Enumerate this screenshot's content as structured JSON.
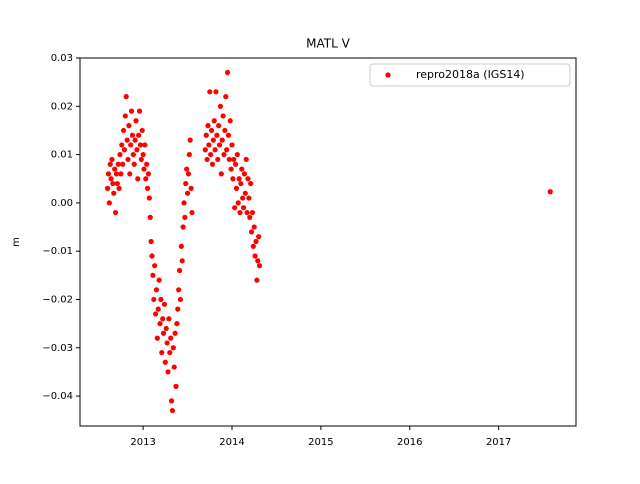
{
  "chart_data": {
    "type": "scatter",
    "title": "MATL V",
    "y_label": "m",
    "xlim": [
      2012.29,
      2017.87
    ],
    "ylim": [
      -0.0462,
      0.03
    ],
    "xticks": [
      2013,
      2014,
      2015,
      2016,
      2017
    ],
    "yticks": [
      0.03,
      0.02,
      0.01,
      {
        "value": 0,
        "label": "0.00"
      },
      {
        "value": -0.01,
        "label": "−0.01"
      },
      {
        "value": -0.02,
        "label": "−0.02"
      },
      {
        "value": -0.03,
        "label": "−0.03"
      },
      {
        "value": -0.04,
        "label": "−0.04"
      }
    ],
    "legend": "upper right",
    "series": [
      {
        "name": "repro2018a (IGS14)",
        "color": "#ff0000",
        "x": [
          2012.6,
          2012.61,
          2012.62,
          2012.63,
          2012.64,
          2012.65,
          2012.66,
          2012.67,
          2012.68,
          2012.69,
          2012.7,
          2012.71,
          2012.72,
          2012.73,
          2012.74,
          2012.75,
          2012.76,
          2012.77,
          2012.78,
          2012.79,
          2012.8,
          2012.81,
          2012.82,
          2012.83,
          2012.84,
          2012.85,
          2012.86,
          2012.87,
          2012.88,
          2012.89,
          2012.9,
          2012.91,
          2012.92,
          2012.93,
          2012.94,
          2012.95,
          2012.96,
          2012.97,
          2012.98,
          2012.99,
          2013.0,
          2013.01,
          2013.02,
          2013.03,
          2013.04,
          2013.05,
          2013.06,
          2013.07,
          2013.08,
          2013.09,
          2013.1,
          2013.11,
          2013.12,
          2013.13,
          2013.14,
          2013.15,
          2013.16,
          2013.17,
          2013.18,
          2013.19,
          2013.2,
          2013.21,
          2013.22,
          2013.23,
          2013.24,
          2013.25,
          2013.26,
          2013.27,
          2013.28,
          2013.29,
          2013.3,
          2013.31,
          2013.32,
          2013.33,
          2013.34,
          2013.35,
          2013.36,
          2013.37,
          2013.38,
          2013.39,
          2013.4,
          2013.41,
          2013.42,
          2013.43,
          2013.44,
          2013.45,
          2013.46,
          2013.47,
          2013.48,
          2013.49,
          2013.5,
          2013.51,
          2013.52,
          2013.53,
          2013.54,
          2013.55,
          2013.7,
          2013.71,
          2013.72,
          2013.73,
          2013.74,
          2013.75,
          2013.76,
          2013.77,
          2013.78,
          2013.79,
          2013.8,
          2013.81,
          2013.82,
          2013.83,
          2013.84,
          2013.85,
          2013.86,
          2013.87,
          2013.88,
          2013.89,
          2013.9,
          2013.91,
          2013.92,
          2013.93,
          2013.94,
          2013.95,
          2013.96,
          2013.97,
          2013.98,
          2013.99,
          2014.0,
          2014.01,
          2014.02,
          2014.03,
          2014.04,
          2014.05,
          2014.06,
          2014.07,
          2014.08,
          2014.09,
          2014.1,
          2014.11,
          2014.12,
          2014.13,
          2014.14,
          2014.15,
          2014.16,
          2014.17,
          2014.18,
          2014.19,
          2014.2,
          2014.21,
          2014.22,
          2014.23,
          2014.24,
          2014.25,
          2014.26,
          2014.27,
          2014.28,
          2014.29,
          2014.3,
          2014.31,
          2017.58
        ],
        "values": [
          0.003,
          0.006,
          0.0,
          0.008,
          0.005,
          0.009,
          0.004,
          0.002,
          0.007,
          -0.002,
          0.006,
          0.004,
          0.008,
          0.003,
          0.01,
          0.006,
          0.012,
          0.008,
          0.015,
          0.011,
          0.018,
          0.022,
          0.013,
          0.009,
          0.016,
          0.006,
          0.012,
          0.019,
          0.014,
          0.01,
          0.008,
          0.013,
          0.017,
          0.011,
          0.005,
          0.014,
          0.019,
          0.012,
          0.009,
          0.015,
          0.01,
          0.007,
          0.012,
          0.005,
          0.008,
          0.003,
          0.006,
          0.001,
          -0.003,
          -0.008,
          -0.011,
          -0.015,
          -0.02,
          -0.013,
          -0.023,
          -0.018,
          -0.028,
          -0.022,
          -0.016,
          -0.025,
          -0.02,
          -0.031,
          -0.024,
          -0.027,
          -0.021,
          -0.033,
          -0.026,
          -0.029,
          -0.035,
          -0.024,
          -0.031,
          -0.028,
          -0.041,
          -0.043,
          -0.03,
          -0.034,
          -0.027,
          -0.038,
          -0.025,
          -0.022,
          -0.018,
          -0.014,
          -0.02,
          -0.009,
          -0.012,
          -0.005,
          0.0,
          -0.003,
          0.004,
          0.007,
          0.002,
          0.006,
          0.01,
          0.013,
          0.003,
          -0.002,
          0.011,
          0.014,
          0.009,
          0.016,
          0.012,
          0.023,
          0.01,
          0.015,
          0.008,
          0.013,
          0.017,
          0.011,
          0.023,
          0.014,
          0.009,
          0.016,
          0.012,
          0.02,
          0.006,
          0.013,
          0.018,
          0.01,
          0.015,
          0.022,
          0.011,
          0.027,
          0.014,
          0.009,
          0.017,
          0.007,
          0.012,
          0.005,
          0.009,
          -0.001,
          0.008,
          0.003,
          0.01,
          0.0,
          0.005,
          -0.002,
          0.004,
          0.007,
          0.001,
          -0.001,
          0.006,
          0.002,
          0.009,
          -0.002,
          0.005,
          0.001,
          -0.003,
          0.004,
          -0.006,
          -0.002,
          -0.009,
          -0.005,
          -0.011,
          -0.008,
          -0.016,
          -0.012,
          -0.007,
          -0.013,
          0.0023
        ]
      }
    ]
  }
}
